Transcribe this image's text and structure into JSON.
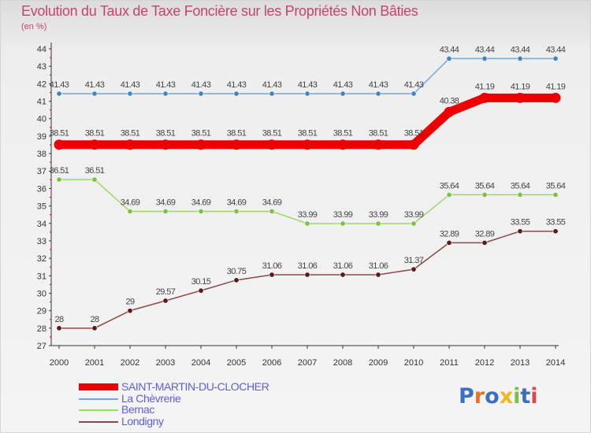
{
  "title": "Evolution du Taux de Taxe Foncière sur les Propriétés Non Bâties",
  "subtitle": "(en %)",
  "logo_text": "Proxiti",
  "chart_data": {
    "type": "line",
    "title": "Evolution du Taux de Taxe Foncière sur les Propriétés Non Bâties",
    "ylabel": "(en %)",
    "xlabel": "",
    "ylim": [
      27,
      44
    ],
    "yticks": [
      27,
      28,
      29,
      30,
      31,
      32,
      33,
      34,
      35,
      36,
      37,
      38,
      39,
      40,
      41,
      42,
      43,
      44
    ],
    "categories": [
      "2000",
      "2001",
      "2002",
      "2003",
      "2004",
      "2005",
      "2006",
      "2007",
      "2008",
      "2009",
      "2010",
      "2011",
      "2012",
      "2013",
      "2014"
    ],
    "grid": false,
    "legend_position": "bottom-left",
    "series": [
      {
        "name": "SAINT-MARTIN-DU-CLOCHER",
        "color": "#ee0000",
        "emphasis": "thick",
        "values": [
          38.51,
          38.51,
          38.51,
          38.51,
          38.51,
          38.51,
          38.51,
          38.51,
          38.51,
          38.51,
          38.51,
          40.38,
          41.19,
          41.19,
          41.19
        ],
        "labels": [
          "38.51",
          "38.51",
          "38.51",
          "38.51",
          "38.51",
          "38.51",
          "38.51",
          "38.51",
          "38.51",
          "38.51",
          "38.51",
          "40.38",
          "41.19",
          "41.19",
          "41.19"
        ]
      },
      {
        "name": "La Chèvrerie",
        "color": "#6fa8dc",
        "marker": "#3d85c6",
        "emphasis": "normal",
        "values": [
          41.43,
          41.43,
          41.43,
          41.43,
          41.43,
          41.43,
          41.43,
          41.43,
          41.43,
          41.43,
          41.43,
          43.44,
          43.44,
          43.44,
          43.44
        ],
        "labels": [
          "41.43",
          "41.43",
          "41.43",
          "41.43",
          "41.43",
          "41.43",
          "41.43",
          "41.43",
          "41.43",
          "41.43",
          "41.43",
          "43.44",
          "43.44",
          "43.44",
          "43.44"
        ]
      },
      {
        "name": "Bernac",
        "color": "#9ad86a",
        "marker": "#7cc242",
        "emphasis": "normal",
        "values": [
          36.51,
          36.51,
          34.69,
          34.69,
          34.69,
          34.69,
          34.69,
          33.99,
          33.99,
          33.99,
          33.99,
          35.64,
          35.64,
          35.64,
          35.64
        ],
        "labels": [
          "36.51",
          "36.51",
          "34.69",
          "34.69",
          "34.69",
          "34.69",
          "34.69",
          "33.99",
          "33.99",
          "33.99",
          "33.99",
          "35.64",
          "35.64",
          "35.64",
          "35.64"
        ]
      },
      {
        "name": "Londigny",
        "color": "#8b4a4a",
        "marker": "#5a1a1a",
        "emphasis": "normal",
        "values": [
          28,
          28,
          29,
          29.57,
          30.15,
          30.75,
          31.06,
          31.06,
          31.06,
          31.06,
          31.37,
          32.89,
          32.89,
          33.55,
          33.55
        ],
        "labels": [
          "28",
          "28",
          "29",
          "29.57",
          "30.15",
          "30.75",
          "31.06",
          "31.06",
          "31.06",
          "31.06",
          "31.37",
          "32.89",
          "32.89",
          "33.55",
          "33.55"
        ]
      }
    ]
  }
}
